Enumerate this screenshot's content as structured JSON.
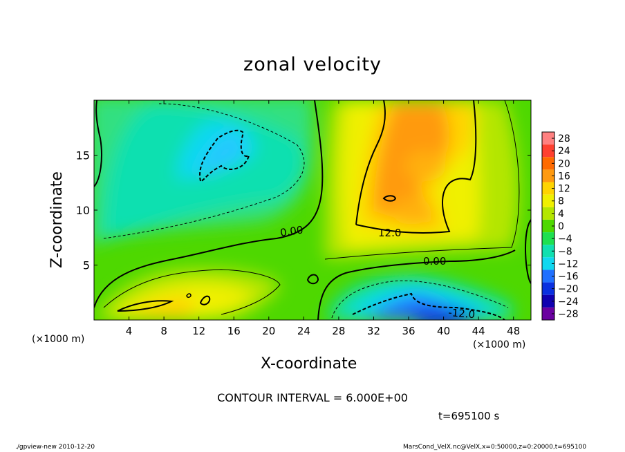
{
  "chart_data": {
    "type": "heatmap",
    "title": "zonal velocity",
    "xlabel": "X-coordinate",
    "ylabel": "Z-coordinate",
    "x_unit_label": "(×1000 m)",
    "xlim": [
      0,
      50
    ],
    "ylim": [
      0,
      20
    ],
    "x_ticks": [
      4,
      8,
      12,
      16,
      20,
      24,
      28,
      32,
      36,
      40,
      44,
      48
    ],
    "y_ticks": [
      5,
      10,
      15
    ],
    "colorbar": {
      "levels": [
        -28,
        -24,
        -20,
        -16,
        -12,
        -8,
        -4,
        0,
        4,
        8,
        12,
        16,
        20,
        24,
        28
      ],
      "labels": [
        "28",
        "24",
        "20",
        "16",
        "12",
        "8",
        "4",
        "0",
        "−4",
        "−8",
        "−12",
        "−16",
        "−20",
        "−24",
        "−28"
      ],
      "colors": [
        "#ff8080",
        "#ff4030",
        "#ff6a00",
        "#ff9a10",
        "#ffd400",
        "#f0f000",
        "#b4e600",
        "#4ed800",
        "#1ee050",
        "#10e0b0",
        "#10d8f0",
        "#2070ff",
        "#0a30e0",
        "#1000b0",
        "#6a00a0"
      ]
    },
    "contour_interval": "CONTOUR INTERVAL = 6.000E+00",
    "contour_labels": [
      "0.00",
      "12.0",
      "0.00",
      "-12.0"
    ],
    "field_features": [
      {
        "kind": "min",
        "x": 14.5,
        "z": 14.5,
        "value": -14
      },
      {
        "kind": "min",
        "x": 37,
        "z": 1.5,
        "value": -18
      },
      {
        "kind": "max",
        "x": 37,
        "z": 17,
        "value": 16
      },
      {
        "kind": "max",
        "x": 34,
        "z": 9.5,
        "value": 15
      },
      {
        "kind": "max",
        "x": 8,
        "z": 1.5,
        "value": 11
      }
    ],
    "time_label": "t=695100 s"
  },
  "footer": {
    "left": "./gpview-new   2010-12-20",
    "right": "MarsCond_VelX.nc@VelX,x=0:50000,z=0:20000,t=695100"
  }
}
